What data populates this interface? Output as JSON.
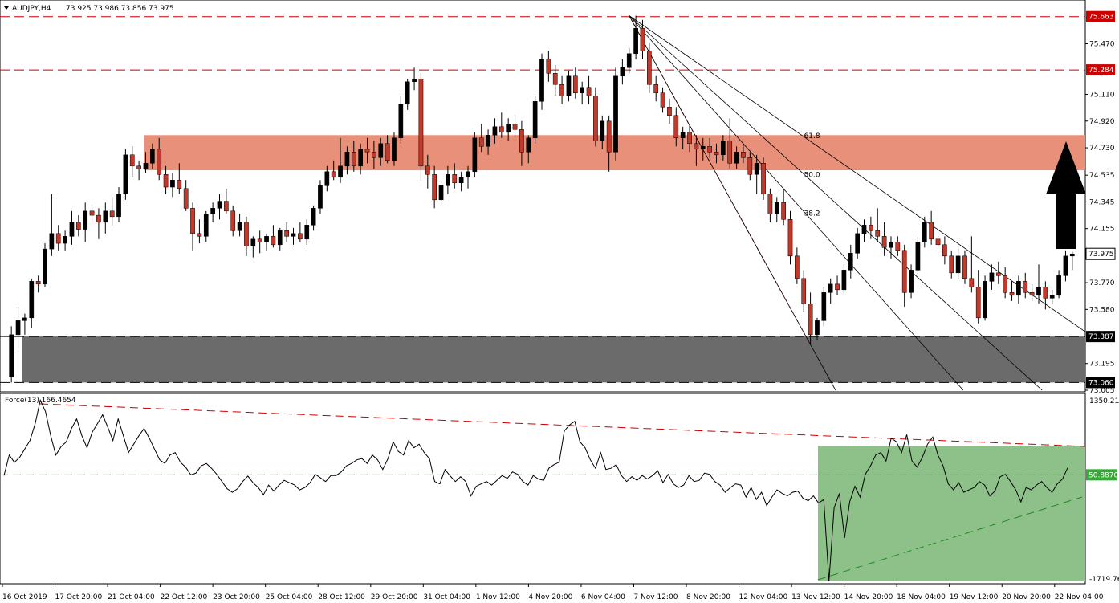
{
  "header": {
    "symbol": "AUDJPY,H4",
    "ohlc": "73.925 73.986 73.856 73.975"
  },
  "indicator": {
    "label": "Force(13) 166.4654"
  },
  "colors": {
    "bull": "#000000",
    "bear": "#c0392b",
    "resistance_zone": "#e8907a",
    "support_zone": "#6b6b6b",
    "level_line": "#cc0000",
    "force_zone": "#8ec08a",
    "force_level": "#33aa33",
    "arrow": "#000000"
  },
  "chart_data": [
    {
      "type": "candlestick",
      "title": "AUDJPY,H4",
      "ylim": [
        73.005,
        75.77
      ],
      "y_ticks": [
        "75.470",
        "75.110",
        "74.920",
        "74.730",
        "74.535",
        "74.345",
        "74.155",
        "73.770",
        "73.580",
        "73.195",
        "73.005"
      ],
      "price_levels": [
        {
          "label": "75.663",
          "value": 75.663,
          "style": "red-dashed"
        },
        {
          "label": "75.284",
          "value": 75.284,
          "style": "red-dashed"
        },
        {
          "label": "73.387",
          "value": 73.387,
          "style": "black-dashed"
        },
        {
          "label": "73.060",
          "value": 73.06,
          "style": "black-dashed"
        }
      ],
      "current_price": {
        "label": "73.975",
        "value": 73.975
      },
      "zones": [
        {
          "name": "resistance",
          "from": 74.57,
          "to": 74.82
        },
        {
          "name": "support",
          "from": 73.06,
          "to": 73.387
        }
      ],
      "fib_fan": {
        "levels": [
          "61.8",
          "50.0",
          "38.2"
        ],
        "anchor_high": {
          "value": 75.67,
          "at": "7 Nov 12:00"
        },
        "anchor_low": {
          "value": 73.33,
          "at": "13 Nov 12:00"
        }
      },
      "x_labels": [
        "16 Oct 2019",
        "17 Oct 20:00",
        "21 Oct 04:00",
        "22 Oct 12:00",
        "23 Oct 20:00",
        "25 Oct 04:00",
        "28 Oct 12:00",
        "29 Oct 20:00",
        "31 Oct 04:00",
        "1 Nov 12:00",
        "4 Nov 20:00",
        "6 Nov 04:00",
        "7 Nov 12:00",
        "8 Nov 20:00",
        "12 Nov 04:00",
        "13 Nov 12:00",
        "14 Nov 20:00",
        "18 Nov 04:00",
        "19 Nov 12:00",
        "20 Nov 20:00",
        "22 Nov 04:00"
      ],
      "candles": [
        [
          73.1,
          73.46,
          73.06,
          73.4
        ],
        [
          73.4,
          73.6,
          73.3,
          73.5
        ],
        [
          73.5,
          73.55,
          73.4,
          73.52
        ],
        [
          73.52,
          73.8,
          73.45,
          73.78
        ],
        [
          73.78,
          73.82,
          73.7,
          73.76
        ],
        [
          73.76,
          74.05,
          73.74,
          74.01
        ],
        [
          74.01,
          74.4,
          73.96,
          74.12
        ],
        [
          74.12,
          74.18,
          74.0,
          74.05
        ],
        [
          74.05,
          74.14,
          74.0,
          74.1
        ],
        [
          74.1,
          74.28,
          74.04,
          74.2
        ],
        [
          74.2,
          74.25,
          74.1,
          74.15
        ],
        [
          74.15,
          74.34,
          74.06,
          74.28
        ],
        [
          74.28,
          74.32,
          74.2,
          74.25
        ],
        [
          74.25,
          74.3,
          74.08,
          74.2
        ],
        [
          74.2,
          74.34,
          74.12,
          74.28
        ],
        [
          74.28,
          74.38,
          74.18,
          74.24
        ],
        [
          74.24,
          74.45,
          74.2,
          74.4
        ],
        [
          74.4,
          74.72,
          74.36,
          74.68
        ],
        [
          74.68,
          74.74,
          74.52,
          74.6
        ],
        [
          74.6,
          74.64,
          74.5,
          74.58
        ],
        [
          74.58,
          74.7,
          74.55,
          74.62
        ],
        [
          74.62,
          74.76,
          74.58,
          74.72
        ],
        [
          74.72,
          74.8,
          74.5,
          74.54
        ],
        [
          74.54,
          74.6,
          74.4,
          74.45
        ],
        [
          74.45,
          74.55,
          74.38,
          74.5
        ],
        [
          74.5,
          74.62,
          74.4,
          74.44
        ],
        [
          74.44,
          74.5,
          74.28,
          74.3
        ],
        [
          74.3,
          74.34,
          74.0,
          74.12
        ],
        [
          74.12,
          74.22,
          74.05,
          74.1
        ],
        [
          74.1,
          74.28,
          74.06,
          74.26
        ],
        [
          74.26,
          74.34,
          74.2,
          74.3
        ],
        [
          74.3,
          74.4,
          74.22,
          74.35
        ],
        [
          74.35,
          74.44,
          74.26,
          74.28
        ],
        [
          74.28,
          74.32,
          74.1,
          74.14
        ],
        [
          74.14,
          74.26,
          74.1,
          74.2
        ],
        [
          74.2,
          74.24,
          73.96,
          74.03
        ],
        [
          74.03,
          74.1,
          73.95,
          74.08
        ],
        [
          74.08,
          74.14,
          73.98,
          74.06
        ],
        [
          74.06,
          74.12,
          74.0,
          74.1
        ],
        [
          74.1,
          74.18,
          74.02,
          74.04
        ],
        [
          74.04,
          74.16,
          74.0,
          74.14
        ],
        [
          74.14,
          74.2,
          74.06,
          74.1
        ],
        [
          74.1,
          74.16,
          74.04,
          74.12
        ],
        [
          74.12,
          74.2,
          74.06,
          74.08
        ],
        [
          74.08,
          74.22,
          74.04,
          74.18
        ],
        [
          74.18,
          74.32,
          74.14,
          74.3
        ],
        [
          74.3,
          74.5,
          74.26,
          74.46
        ],
        [
          74.46,
          74.6,
          74.42,
          74.56
        ],
        [
          74.56,
          74.64,
          74.5,
          74.52
        ],
        [
          74.52,
          74.8,
          74.48,
          74.6
        ],
        [
          74.6,
          74.74,
          74.54,
          74.7
        ],
        [
          74.7,
          74.78,
          74.56,
          74.6
        ],
        [
          74.6,
          74.76,
          74.54,
          74.72
        ],
        [
          74.72,
          74.8,
          74.62,
          74.7
        ],
        [
          74.7,
          74.78,
          74.58,
          74.66
        ],
        [
          74.66,
          74.8,
          74.6,
          74.76
        ],
        [
          74.76,
          74.82,
          74.62,
          74.64
        ],
        [
          74.64,
          74.84,
          74.6,
          74.8
        ],
        [
          74.8,
          75.1,
          74.76,
          75.04
        ],
        [
          75.04,
          75.22,
          75.0,
          75.2
        ],
        [
          75.2,
          75.3,
          75.14,
          75.22
        ],
        [
          75.22,
          75.26,
          74.5,
          74.6
        ],
        [
          74.6,
          74.68,
          74.44,
          74.54
        ],
        [
          74.54,
          74.6,
          74.3,
          74.36
        ],
        [
          74.36,
          74.5,
          74.32,
          74.46
        ],
        [
          74.46,
          74.6,
          74.4,
          74.54
        ],
        [
          74.54,
          74.62,
          74.44,
          74.48
        ],
        [
          74.48,
          74.56,
          74.42,
          74.52
        ],
        [
          74.52,
          74.6,
          74.44,
          74.56
        ],
        [
          74.56,
          74.84,
          74.52,
          74.8
        ],
        [
          74.8,
          74.9,
          74.7,
          74.74
        ],
        [
          74.74,
          74.86,
          74.68,
          74.82
        ],
        [
          74.82,
          74.94,
          74.76,
          74.88
        ],
        [
          74.88,
          74.98,
          74.8,
          74.84
        ],
        [
          74.84,
          74.94,
          74.78,
          74.9
        ],
        [
          74.9,
          74.96,
          74.8,
          74.86
        ],
        [
          74.86,
          74.92,
          74.6,
          74.7
        ],
        [
          74.7,
          74.82,
          74.62,
          74.8
        ],
        [
          74.8,
          75.1,
          74.76,
          75.06
        ],
        [
          75.06,
          75.4,
          75.0,
          75.36
        ],
        [
          75.36,
          75.42,
          75.2,
          75.26
        ],
        [
          75.26,
          75.32,
          75.1,
          75.18
        ],
        [
          75.18,
          75.24,
          75.04,
          75.1
        ],
        [
          75.1,
          75.28,
          75.06,
          75.24
        ],
        [
          75.24,
          75.3,
          75.08,
          75.12
        ],
        [
          75.12,
          75.2,
          75.04,
          75.16
        ],
        [
          75.16,
          75.24,
          75.04,
          75.1
        ],
        [
          75.1,
          75.16,
          74.74,
          74.78
        ],
        [
          74.78,
          74.96,
          74.72,
          74.92
        ],
        [
          74.92,
          74.96,
          74.56,
          74.7
        ],
        [
          74.7,
          75.3,
          74.64,
          75.24
        ],
        [
          75.24,
          75.36,
          75.18,
          75.3
        ],
        [
          75.3,
          75.44,
          75.26,
          75.4
        ],
        [
          75.4,
          75.67,
          75.36,
          75.58
        ],
        [
          75.58,
          75.64,
          75.36,
          75.42
        ],
        [
          75.42,
          75.48,
          75.12,
          75.18
        ],
        [
          75.18,
          75.24,
          75.06,
          75.12
        ],
        [
          75.12,
          75.16,
          74.98,
          75.02
        ],
        [
          75.02,
          75.08,
          74.9,
          74.96
        ],
        [
          74.96,
          75.02,
          74.74,
          74.8
        ],
        [
          74.8,
          74.88,
          74.72,
          74.84
        ],
        [
          74.84,
          74.9,
          74.7,
          74.76
        ],
        [
          74.76,
          74.82,
          74.6,
          74.72
        ],
        [
          74.72,
          74.8,
          74.64,
          74.74
        ],
        [
          74.74,
          74.8,
          74.66,
          74.7
        ],
        [
          74.7,
          74.76,
          74.62,
          74.68
        ],
        [
          74.68,
          74.82,
          74.64,
          74.78
        ],
        [
          74.78,
          74.94,
          74.58,
          74.62
        ],
        [
          74.62,
          74.74,
          74.58,
          74.7
        ],
        [
          74.7,
          74.76,
          74.62,
          74.66
        ],
        [
          74.66,
          74.7,
          74.5,
          74.54
        ],
        [
          74.54,
          74.68,
          74.4,
          74.62
        ],
        [
          74.62,
          74.66,
          74.36,
          74.4
        ],
        [
          74.4,
          74.44,
          74.2,
          74.26
        ],
        [
          74.26,
          74.38,
          74.2,
          74.34
        ],
        [
          74.34,
          74.44,
          74.18,
          74.22
        ],
        [
          74.22,
          74.28,
          73.9,
          73.96
        ],
        [
          73.96,
          74.02,
          73.76,
          73.8
        ],
        [
          73.8,
          73.86,
          73.56,
          73.62
        ],
        [
          73.62,
          73.7,
          73.33,
          73.4
        ],
        [
          73.4,
          73.52,
          73.36,
          73.5
        ],
        [
          73.5,
          73.74,
          73.46,
          73.7
        ],
        [
          73.7,
          73.8,
          73.62,
          73.76
        ],
        [
          73.76,
          73.82,
          73.68,
          73.72
        ],
        [
          73.72,
          73.9,
          73.68,
          73.86
        ],
        [
          73.86,
          74.04,
          73.8,
          73.98
        ],
        [
          73.98,
          74.16,
          73.94,
          74.12
        ],
        [
          74.12,
          74.22,
          74.06,
          74.18
        ],
        [
          74.18,
          74.24,
          74.08,
          74.14
        ],
        [
          74.14,
          74.3,
          74.06,
          74.1
        ],
        [
          74.1,
          74.2,
          73.96,
          74.02
        ],
        [
          74.02,
          74.1,
          73.94,
          74.06
        ],
        [
          74.06,
          74.1,
          73.96,
          74.0
        ],
        [
          74.0,
          74.04,
          73.6,
          73.7
        ],
        [
          73.7,
          73.9,
          73.66,
          73.86
        ],
        [
          73.86,
          74.1,
          73.82,
          74.06
        ],
        [
          74.06,
          74.24,
          74.02,
          74.2
        ],
        [
          74.2,
          74.28,
          74.04,
          74.08
        ],
        [
          74.08,
          74.14,
          73.98,
          74.04
        ],
        [
          74.04,
          74.1,
          73.9,
          73.96
        ],
        [
          73.96,
          74.0,
          73.8,
          73.84
        ],
        [
          73.84,
          74.02,
          73.8,
          73.96
        ],
        [
          73.96,
          74.0,
          73.76,
          73.8
        ],
        [
          73.8,
          74.1,
          73.7,
          73.74
        ],
        [
          73.74,
          73.86,
          73.48,
          73.52
        ],
        [
          73.52,
          73.82,
          73.5,
          73.78
        ],
        [
          73.78,
          73.9,
          73.72,
          73.84
        ],
        [
          73.84,
          73.92,
          73.76,
          73.82
        ],
        [
          73.82,
          73.88,
          73.66,
          73.7
        ],
        [
          73.7,
          73.78,
          73.64,
          73.68
        ],
        [
          73.68,
          73.82,
          73.62,
          73.78
        ],
        [
          73.78,
          73.84,
          73.66,
          73.7
        ],
        [
          73.7,
          73.76,
          73.64,
          73.68
        ],
        [
          73.68,
          73.9,
          73.62,
          73.74
        ],
        [
          73.74,
          73.78,
          73.58,
          73.66
        ],
        [
          73.66,
          73.72,
          73.62,
          73.68
        ],
        [
          73.68,
          73.86,
          73.66,
          73.82
        ],
        [
          73.82,
          74.0,
          73.78,
          73.96
        ],
        [
          73.96,
          73.99,
          73.86,
          73.975
        ]
      ]
    },
    {
      "type": "line",
      "title": "Force(13) 166.4654",
      "ylim": [
        -1719.76,
        1350.213
      ],
      "y_ticks": [
        "1350.213",
        "50.8870",
        "-1719.76"
      ],
      "level_line": {
        "label": "50.8870",
        "value": 50.887
      },
      "values": [
        40,
        380,
        260,
        340,
        480,
        620,
        900,
        1290,
        1100,
        700,
        380,
        520,
        600,
        820,
        980,
        700,
        500,
        760,
        900,
        1050,
        840,
        620,
        980,
        700,
        420,
        560,
        700,
        820,
        660,
        480,
        300,
        240,
        380,
        420,
        260,
        180,
        50,
        80,
        200,
        240,
        160,
        60,
        -60,
        -180,
        -240,
        -180,
        -60,
        30,
        -80,
        -160,
        -280,
        -120,
        -220,
        -120,
        -40,
        -80,
        -120,
        -200,
        -160,
        -80,
        60,
        0,
        -60,
        40,
        40,
        100,
        200,
        240,
        300,
        320,
        240,
        380,
        300,
        140,
        320,
        600,
        440,
        380,
        620,
        500,
        560,
        420,
        320,
        -60,
        -100,
        140,
        30,
        -60,
        20,
        -60,
        -300,
        -140,
        -100,
        -60,
        -120,
        -40,
        40,
        -10,
        100,
        60,
        -60,
        -120,
        40,
        -20,
        -40,
        160,
        220,
        260,
        780,
        880,
        940,
        600,
        500,
        300,
        160,
        420,
        140,
        160,
        220,
        40,
        -60,
        20,
        -40,
        40,
        -20,
        40,
        120,
        -80,
        60,
        -100,
        -160,
        -120,
        40,
        -60,
        -40,
        80,
        60,
        -60,
        -120,
        -240,
        -160,
        -100,
        -120,
        -320,
        -160,
        -360,
        -240,
        -460,
        -320,
        -200,
        -260,
        -300,
        -240,
        -220,
        -340,
        -380,
        -300,
        -420,
        -360,
        -1719.76,
        -500,
        -260,
        -1000,
        -400,
        -140,
        -320,
        60,
        200,
        380,
        420,
        280,
        660,
        600,
        420,
        720,
        280,
        180,
        340,
        560,
        680,
        380,
        200,
        -100,
        -200,
        -80,
        -240,
        -200,
        -160,
        -60,
        -120,
        -300,
        -220,
        20,
        60,
        -60,
        -200,
        -400,
        -160,
        -200,
        -120,
        -60,
        -160,
        -240,
        -100,
        -20,
        166.4654
      ]
    }
  ]
}
